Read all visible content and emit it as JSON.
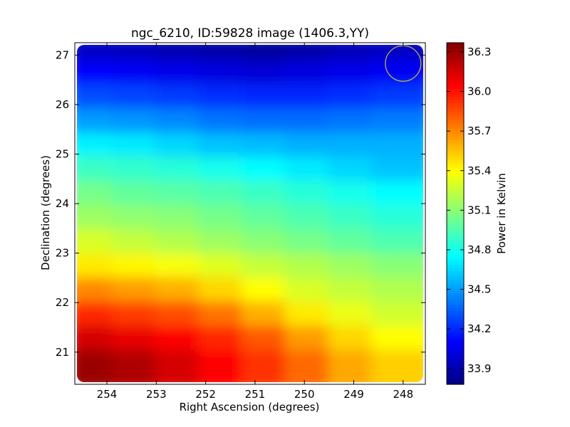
{
  "chart_data": {
    "type": "heatmap",
    "title": "ngc_6210, ID:59828 image (1406.3,YY)",
    "xlabel": "Right Ascension (degrees)",
    "ylabel": "Declination (degrees)",
    "colorbar_label": "Power in Kelvin",
    "colormap": "jet",
    "x_inverted": true,
    "xlim": [
      254.65,
      247.55
    ],
    "ylim": [
      20.35,
      27.25
    ],
    "xticks": [
      254,
      253,
      252,
      251,
      250,
      249,
      248
    ],
    "yticks": [
      21,
      22,
      23,
      24,
      25,
      26,
      27
    ],
    "clim": [
      33.78,
      36.37
    ],
    "colorbar_ticks": [
      33.9,
      34.2,
      34.5,
      34.8,
      35.1,
      35.4,
      35.7,
      36.0,
      36.3
    ],
    "dec_rows": [
      27.1,
      26.6,
      26.1,
      25.6,
      25.1,
      24.6,
      24.1,
      23.6,
      23.1,
      22.6,
      22.1,
      21.6,
      21.1,
      20.6
    ],
    "ra_cols": [
      254.5,
      253.5,
      252.5,
      251.5,
      250.5,
      249.5,
      248.5,
      248.0
    ],
    "values": [
      [
        33.95,
        33.93,
        33.9,
        33.88,
        33.85,
        33.88,
        33.92,
        33.95
      ],
      [
        34.1,
        34.08,
        34.05,
        34.02,
        34.0,
        34.02,
        34.05,
        34.08
      ],
      [
        34.3,
        34.28,
        34.25,
        34.22,
        34.2,
        34.2,
        34.22,
        34.25
      ],
      [
        34.5,
        34.48,
        34.45,
        34.4,
        34.38,
        34.38,
        34.4,
        34.42
      ],
      [
        34.72,
        34.7,
        34.65,
        34.6,
        34.58,
        34.55,
        34.55,
        34.55
      ],
      [
        34.9,
        34.88,
        34.85,
        34.8,
        34.75,
        34.7,
        34.65,
        34.6
      ],
      [
        35.05,
        35.0,
        34.98,
        34.95,
        34.9,
        34.85,
        34.8,
        34.75
      ],
      [
        35.15,
        35.12,
        35.1,
        35.05,
        35.0,
        34.95,
        34.9,
        34.85
      ],
      [
        35.3,
        35.25,
        35.2,
        35.15,
        35.1,
        35.05,
        35.0,
        34.95
      ],
      [
        35.45,
        35.42,
        35.38,
        35.32,
        35.25,
        35.2,
        35.15,
        35.1
      ],
      [
        35.7,
        35.65,
        35.6,
        35.5,
        35.4,
        35.3,
        35.25,
        35.2
      ],
      [
        35.95,
        35.9,
        35.85,
        35.75,
        35.6,
        35.45,
        35.35,
        35.28
      ],
      [
        36.15,
        36.1,
        36.05,
        35.95,
        35.82,
        35.65,
        35.5,
        35.4
      ],
      [
        36.3,
        36.25,
        36.15,
        36.05,
        35.92,
        35.78,
        35.62,
        35.52
      ]
    ],
    "beam_marker": {
      "ra": 248.0,
      "dec": 26.83,
      "radius_deg": 0.36,
      "color": "#b8b24a"
    }
  }
}
